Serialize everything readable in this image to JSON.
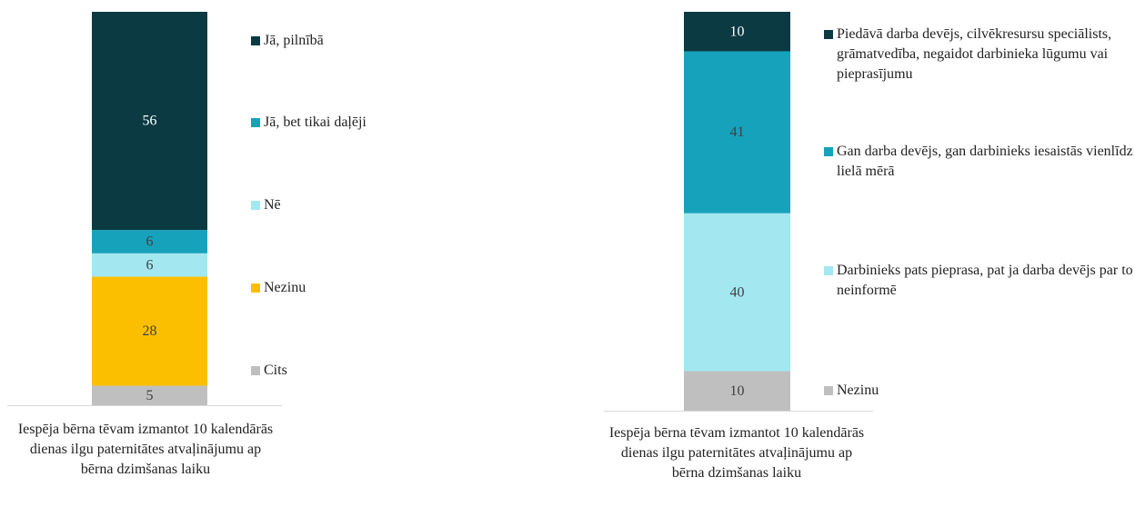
{
  "chart_data": [
    {
      "type": "stacked-bar",
      "categories": [
        "Iespēja bērna tēvam izmantot 10 kalendārās dienas ilgu paternitātes atvaļinājumu ap bērna dzimšanas laiku"
      ],
      "series": [
        {
          "name": "Jā, pilnībā",
          "color": "#0b3a43",
          "values": [
            56
          ]
        },
        {
          "name": "Jā, bet tikai daļēji",
          "color": "#17a2bb",
          "values": [
            6
          ]
        },
        {
          "name": "Nē",
          "color": "#a3e7f1",
          "values": [
            6
          ]
        },
        {
          "name": "Nezinu",
          "color": "#fcbf00",
          "values": [
            28
          ]
        },
        {
          "name": "Cits",
          "color": "#bfbfbf",
          "values": [
            5
          ]
        }
      ]
    },
    {
      "type": "stacked-bar",
      "categories": [
        "Iespēja bērna tēvam izmantot 10 kalendārās dienas ilgu paternitātes atvaļinājumu ap bērna dzimšanas laiku"
      ],
      "series": [
        {
          "name": "Piedāvā darba devējs, cilvēkresursu speciālists, grāmatvedība, negaidot darbinieka lūgumu vai pieprasījumu",
          "color": "#0b3a43",
          "values": [
            10
          ]
        },
        {
          "name": "Gan darba devējs, gan darbinieks iesaistās vienlīdz lielā mērā",
          "color": "#17a2bb",
          "values": [
            41
          ]
        },
        {
          "name": "Darbinieks pats pieprasa, pat ja darba devējs par to neinformē",
          "color": "#a3e7f1",
          "values": [
            40
          ]
        },
        {
          "name": "Nezinu",
          "color": "#bfbfbf",
          "values": [
            10
          ]
        }
      ]
    }
  ]
}
